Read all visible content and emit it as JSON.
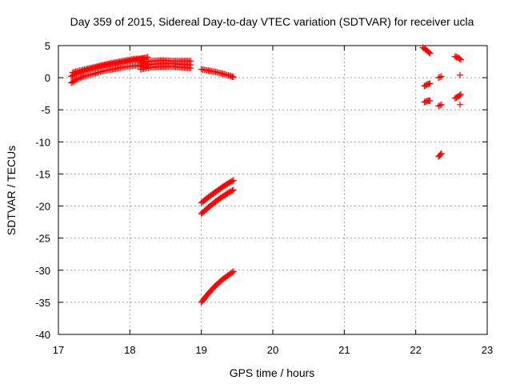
{
  "chart_data": {
    "type": "scatter",
    "title": "Day 359 of 2015, Sidereal Day-to-day VTEC variation (SDTVAR) for receiver ucla",
    "xlabel": "GPS time / hours",
    "ylabel": "SDTVAR / TECUs",
    "xlim": [
      17,
      23
    ],
    "ylim": [
      -40,
      5
    ],
    "xticks": [
      "17",
      "18",
      "19",
      "20",
      "21",
      "22",
      "23"
    ],
    "yticks": [
      "5",
      "0",
      "-5",
      "-10",
      "-15",
      "-20",
      "-25",
      "-30",
      "-35",
      "-40"
    ],
    "grid": true,
    "marker": "plus",
    "color": "#ff0000",
    "series": [
      {
        "x": [
          17.18,
          17.25,
          17.35,
          17.5,
          17.65,
          17.8,
          17.95,
          18.1,
          18.25
        ],
        "y": [
          -0.8,
          -0.3,
          0.2,
          0.6,
          1.1,
          1.4,
          1.7,
          1.9,
          2.1
        ]
      },
      {
        "x": [
          17.18,
          17.25,
          17.35,
          17.5,
          17.65,
          17.8,
          17.95,
          18.1,
          18.25
        ],
        "y": [
          0.2,
          0.6,
          1.0,
          1.5,
          1.9,
          2.2,
          2.5,
          2.8,
          3.2
        ]
      },
      {
        "x": [
          17.2,
          17.3,
          17.45,
          17.6,
          17.75,
          17.9,
          18.05,
          18.2
        ],
        "y": [
          0.8,
          1.1,
          1.5,
          1.9,
          2.3,
          2.6,
          2.9,
          3.0
        ]
      },
      {
        "x": [
          18.15,
          18.3,
          18.45,
          18.6,
          18.72,
          18.85
        ],
        "y": [
          2.3,
          2.6,
          2.7,
          2.6,
          2.6,
          2.6
        ]
      },
      {
        "x": [
          18.15,
          18.3,
          18.45,
          18.6,
          18.72,
          18.85
        ],
        "y": [
          1.8,
          2.1,
          2.2,
          2.2,
          2.1,
          2.0
        ]
      },
      {
        "x": [
          18.15,
          18.3,
          18.45,
          18.6,
          18.72,
          18.85
        ],
        "y": [
          1.3,
          1.6,
          1.7,
          1.7,
          1.6,
          1.5
        ]
      },
      {
        "x": [
          19.0,
          19.1,
          19.2,
          19.3,
          19.4,
          19.45
        ],
        "y": [
          1.3,
          1.1,
          0.9,
          0.6,
          0.3,
          0.1
        ]
      },
      {
        "x": [
          19.0,
          19.1,
          19.2,
          19.3,
          19.4,
          19.45
        ],
        "y": [
          -19.5,
          -18.6,
          -17.8,
          -17.0,
          -16.3,
          -16.0
        ]
      },
      {
        "x": [
          19.0,
          19.1,
          19.2,
          19.3,
          19.4,
          19.45
        ],
        "y": [
          -21.2,
          -20.2,
          -19.3,
          -18.5,
          -17.8,
          -17.5
        ]
      },
      {
        "x": [
          19.0,
          19.1,
          19.2,
          19.3,
          19.4,
          19.45
        ],
        "y": [
          -35.0,
          -33.6,
          -32.4,
          -31.4,
          -30.6,
          -30.2
        ]
      },
      {
        "x": [
          22.1,
          22.15,
          22.2
        ],
        "y": [
          4.7,
          4.3,
          3.8
        ]
      },
      {
        "x": [
          22.12,
          22.17,
          22.2
        ],
        "y": [
          -1.3,
          -1.0,
          -0.9
        ]
      },
      {
        "x": [
          22.12,
          22.17,
          22.2
        ],
        "y": [
          -3.8,
          -3.6,
          -3.6
        ]
      },
      {
        "x": [
          22.32,
          22.36
        ],
        "y": [
          0.0,
          0.2
        ]
      },
      {
        "x": [
          22.32,
          22.36
        ],
        "y": [
          -4.4,
          -4.2
        ]
      },
      {
        "x": [
          22.32,
          22.36
        ],
        "y": [
          -12.3,
          -11.8
        ]
      },
      {
        "x": [
          22.55,
          22.6,
          22.63
        ],
        "y": [
          3.3,
          3.1,
          2.8
        ]
      },
      {
        "x": [
          22.62
        ],
        "y": [
          0.4
        ]
      },
      {
        "x": [
          22.55,
          22.6,
          22.63
        ],
        "y": [
          -3.2,
          -2.9,
          -2.6
        ]
      },
      {
        "x": [
          22.62
        ],
        "y": [
          -4.2
        ]
      }
    ]
  }
}
